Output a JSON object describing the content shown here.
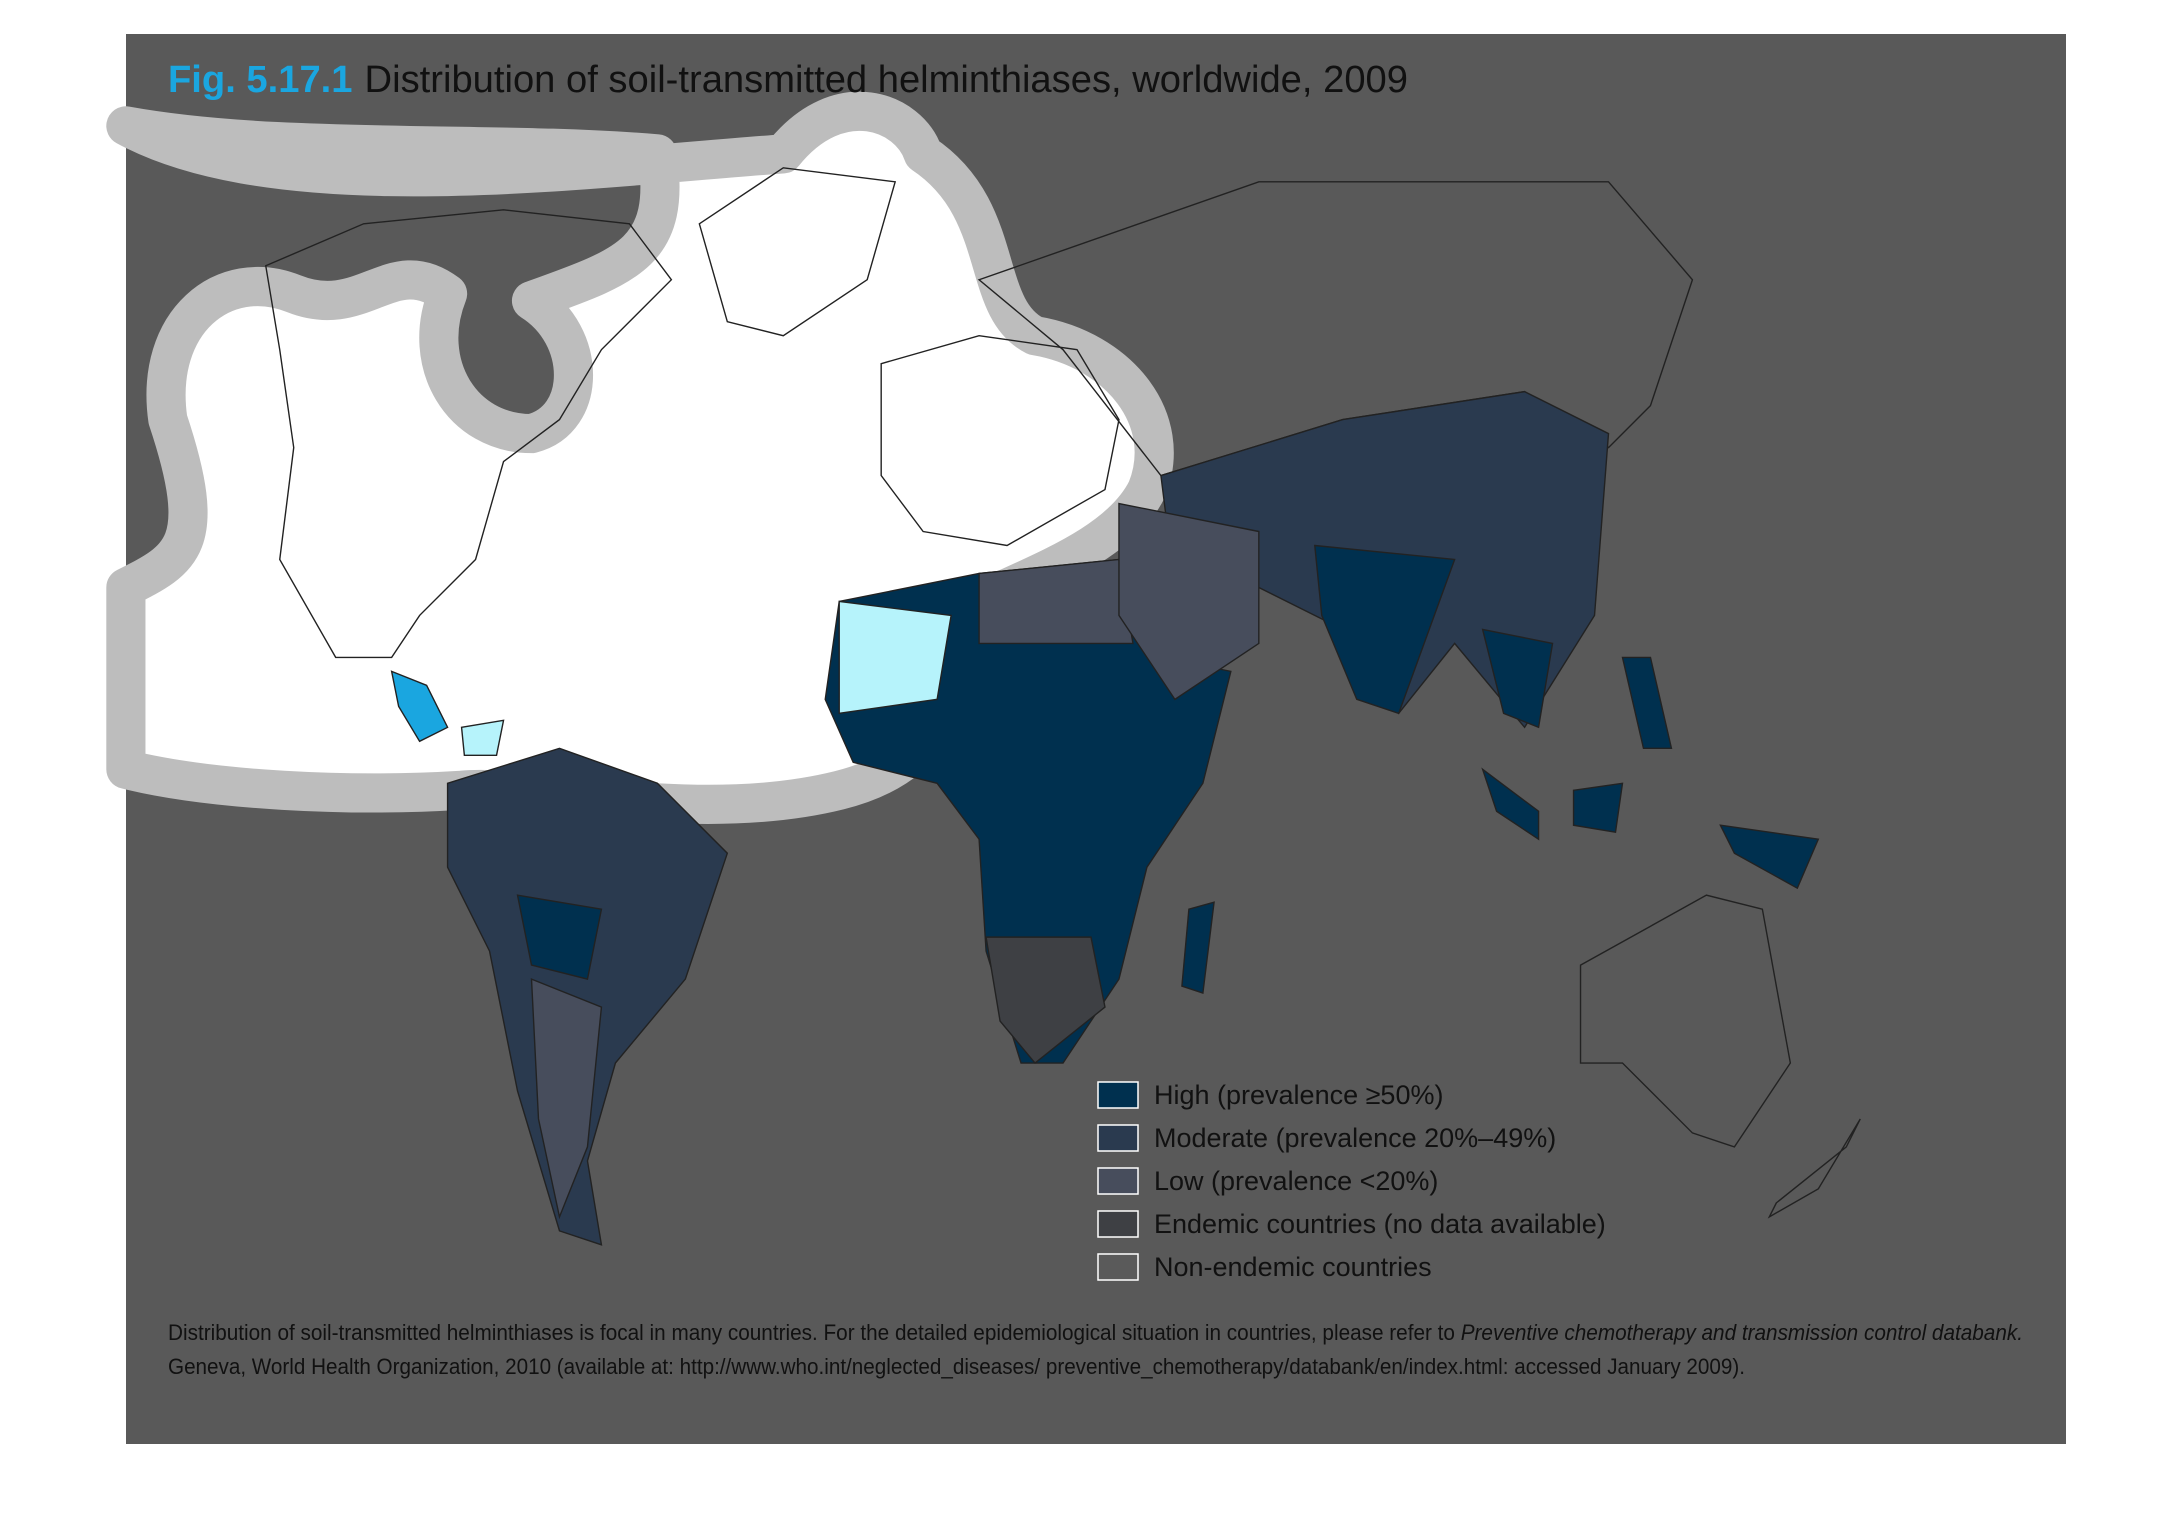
{
  "title": {
    "figure": "Fig. 5.17.1",
    "text": "Distribution of soil-transmitted helminthiases, worldwide, 2009"
  },
  "legend": [
    {
      "label": "High (prevalence ≥50%)",
      "color": "#00304f"
    },
    {
      "label": "Moderate (prevalence 20%–49%)",
      "color": "#2a3a4f"
    },
    {
      "label": "Low (prevalence <20%)",
      "color": "#474d5c"
    },
    {
      "label": "Endemic countries (no data available)",
      "color": "#3e4044"
    },
    {
      "label": "Non-endemic countries",
      "color": "#5a5a5a"
    }
  ],
  "footnote": {
    "line1": "Distribution of soil-transmitted helminthiases is focal in many countries. For the detailed epidemiological situation in countries, please refer to ",
    "line1_italic": "Preventive chemotherapy and transmission control databank.",
    "line2": "Geneva, World Health Organization, 2010 (available at: http://www.who.int/neglected_diseases/ preventive_chemotherapy/databank/en/index.html: accessed January 2009)."
  }
}
